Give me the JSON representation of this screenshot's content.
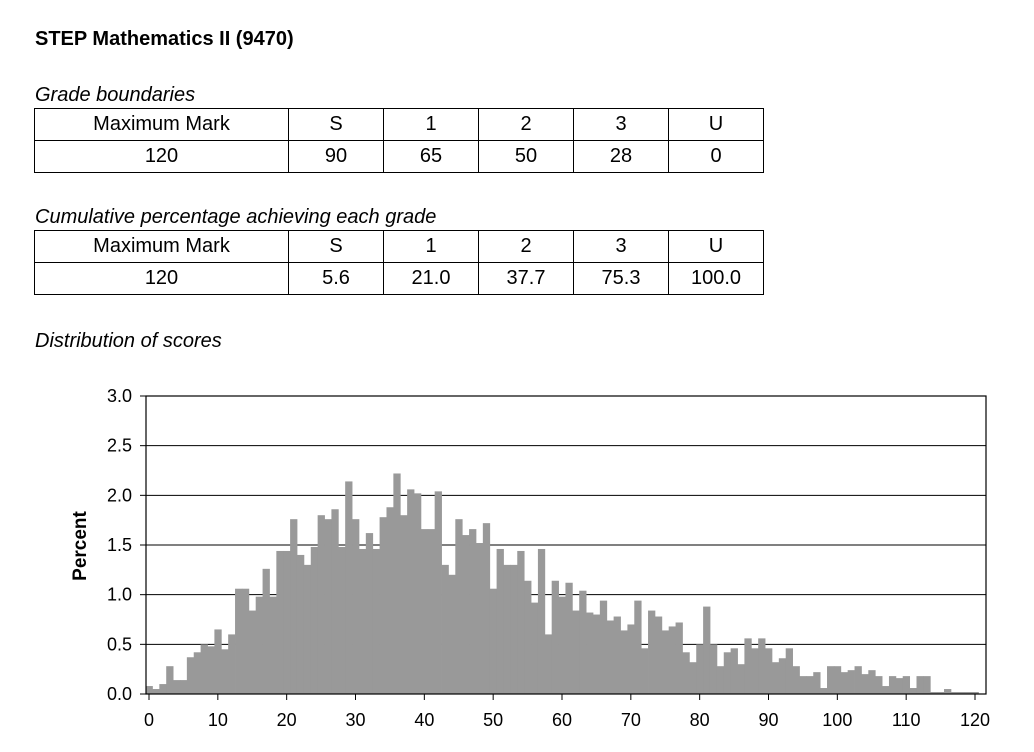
{
  "title": "STEP Mathematics II (9470)",
  "boundaries": {
    "label": "Grade boundaries",
    "headers": [
      "Maximum Mark",
      "S",
      "1",
      "2",
      "3",
      "U"
    ],
    "values": [
      "120",
      "90",
      "65",
      "50",
      "28",
      "0"
    ]
  },
  "cumulative": {
    "label": "Cumulative percentage achieving each grade",
    "headers": [
      "Maximum Mark",
      "S",
      "1",
      "2",
      "3",
      "U"
    ],
    "values": [
      "120",
      "5.6",
      "21.0",
      "37.7",
      "75.3",
      "100.0"
    ]
  },
  "distribution_label": "Distribution of scores",
  "colors": {
    "bar": "#999999",
    "grid": "#000000"
  },
  "chart_data": {
    "type": "bar",
    "title": "",
    "xlabel": "",
    "ylabel": "Percent",
    "xlim": [
      0,
      120
    ],
    "ylim": [
      0,
      3.0
    ],
    "grid": true,
    "legend": "none",
    "x_ticks": [
      0,
      10,
      20,
      30,
      40,
      50,
      60,
      70,
      80,
      90,
      100,
      110,
      120
    ],
    "y_ticks": [
      "0.0",
      "0.5",
      "1.0",
      "1.5",
      "2.0",
      "2.5",
      "3.0"
    ],
    "x": [
      0,
      1,
      2,
      3,
      4,
      5,
      6,
      7,
      8,
      9,
      10,
      11,
      12,
      13,
      14,
      15,
      16,
      17,
      18,
      19,
      20,
      21,
      22,
      23,
      24,
      25,
      26,
      27,
      28,
      29,
      30,
      31,
      32,
      33,
      34,
      35,
      36,
      37,
      38,
      39,
      40,
      41,
      42,
      43,
      44,
      45,
      46,
      47,
      48,
      49,
      50,
      51,
      52,
      53,
      54,
      55,
      56,
      57,
      58,
      59,
      60,
      61,
      62,
      63,
      64,
      65,
      66,
      67,
      68,
      69,
      70,
      71,
      72,
      73,
      74,
      75,
      76,
      77,
      78,
      79,
      80,
      81,
      82,
      83,
      84,
      85,
      86,
      87,
      88,
      89,
      90,
      91,
      92,
      93,
      94,
      95,
      96,
      97,
      98,
      99,
      100,
      101,
      102,
      103,
      104,
      105,
      106,
      107,
      108,
      109,
      110,
      111,
      112,
      113,
      114,
      115,
      116,
      117,
      118,
      119,
      120
    ],
    "values": [
      0.08,
      0.05,
      0.1,
      0.28,
      0.14,
      0.14,
      0.37,
      0.42,
      0.5,
      0.48,
      0.65,
      0.45,
      0.6,
      1.06,
      1.06,
      0.84,
      0.98,
      1.26,
      0.98,
      1.44,
      1.44,
      1.76,
      1.4,
      1.3,
      1.48,
      1.8,
      1.76,
      1.86,
      1.48,
      2.14,
      1.76,
      1.46,
      1.62,
      1.46,
      1.78,
      1.88,
      2.22,
      1.8,
      2.06,
      2.02,
      1.66,
      1.66,
      2.04,
      1.3,
      1.2,
      1.76,
      1.6,
      1.66,
      1.52,
      1.72,
      1.06,
      1.46,
      1.3,
      1.3,
      1.44,
      1.14,
      0.92,
      1.46,
      0.6,
      1.14,
      0.98,
      1.12,
      0.84,
      1.04,
      0.82,
      0.8,
      0.94,
      0.74,
      0.78,
      0.64,
      0.7,
      0.94,
      0.46,
      0.84,
      0.78,
      0.64,
      0.68,
      0.72,
      0.42,
      0.32,
      0.5,
      0.88,
      0.5,
      0.28,
      0.42,
      0.46,
      0.3,
      0.56,
      0.46,
      0.56,
      0.46,
      0.32,
      0.36,
      0.46,
      0.28,
      0.18,
      0.18,
      0.22,
      0.06,
      0.28,
      0.28,
      0.22,
      0.24,
      0.28,
      0.2,
      0.24,
      0.18,
      0.08,
      0.18,
      0.16,
      0.18,
      0.06,
      0.18,
      0.18,
      0.02,
      0.02,
      0.05,
      0.02,
      0.02,
      0.02,
      0.02
    ]
  }
}
